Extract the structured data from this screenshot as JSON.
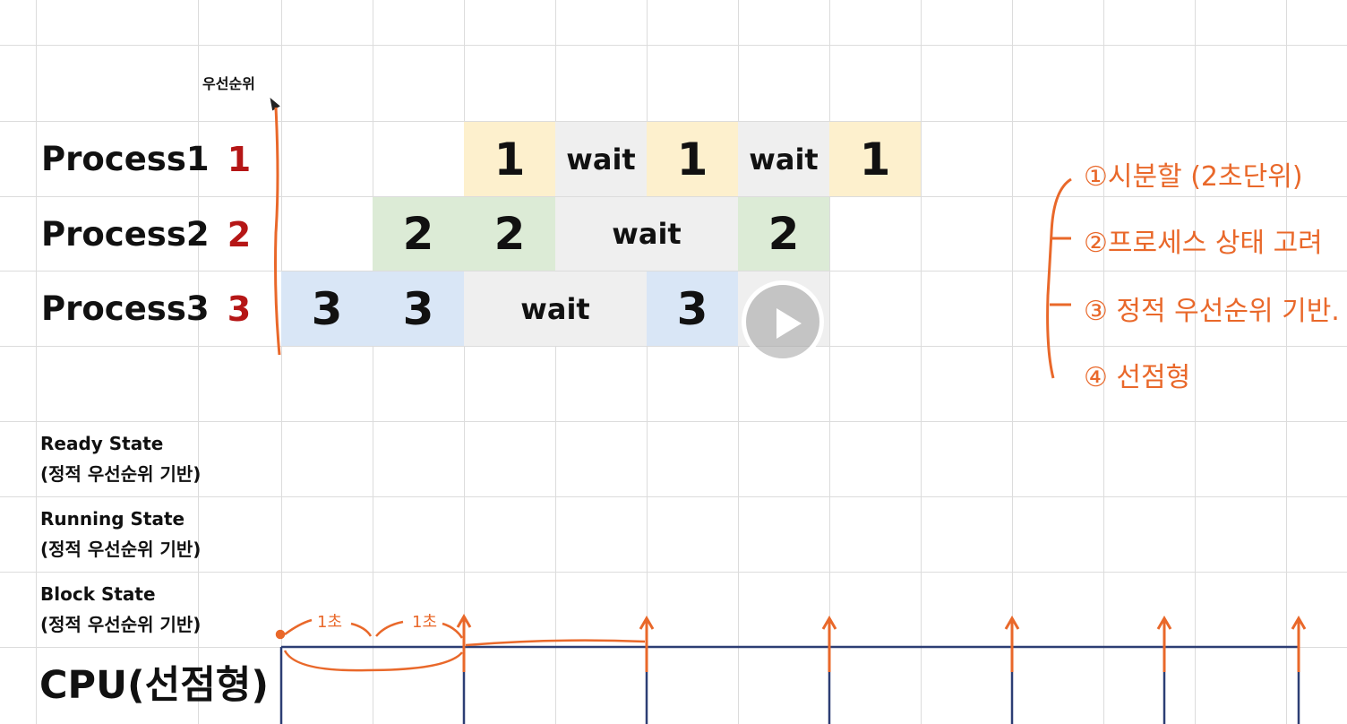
{
  "priority_header": "우선순위",
  "processes": [
    {
      "label": "Process1",
      "priority": "1"
    },
    {
      "label": "Process2",
      "priority": "2"
    },
    {
      "label": "Process3",
      "priority": "3"
    }
  ],
  "timeline": {
    "p1": [
      "1",
      "wait",
      "1",
      "wait",
      "1"
    ],
    "p2": [
      "2",
      "2",
      "wait",
      "2"
    ],
    "p3": [
      "3",
      "3",
      "wait",
      "3"
    ]
  },
  "states": [
    {
      "title": "Ready State",
      "subtitle": "(정적 우선순위 기반)"
    },
    {
      "title": "Running State",
      "subtitle": "(정적 우선순위 기반)"
    },
    {
      "title": "Block State",
      "subtitle": "(정적 우선순위 기반)"
    }
  ],
  "cpu_label": "CPU(선점형)",
  "notes": [
    "①시분할 (2초단위)",
    "②프로세스 상태 고려",
    "③ 정적 우선순위 기반.",
    "④ 선점형"
  ],
  "timeline_marks": [
    "1초",
    "1초"
  ],
  "colors": {
    "accent_handwriting": "#e9682a",
    "priority_red": "#b51616",
    "cpu_box": "#2d3e74"
  },
  "icons": {
    "play": "play-icon"
  }
}
